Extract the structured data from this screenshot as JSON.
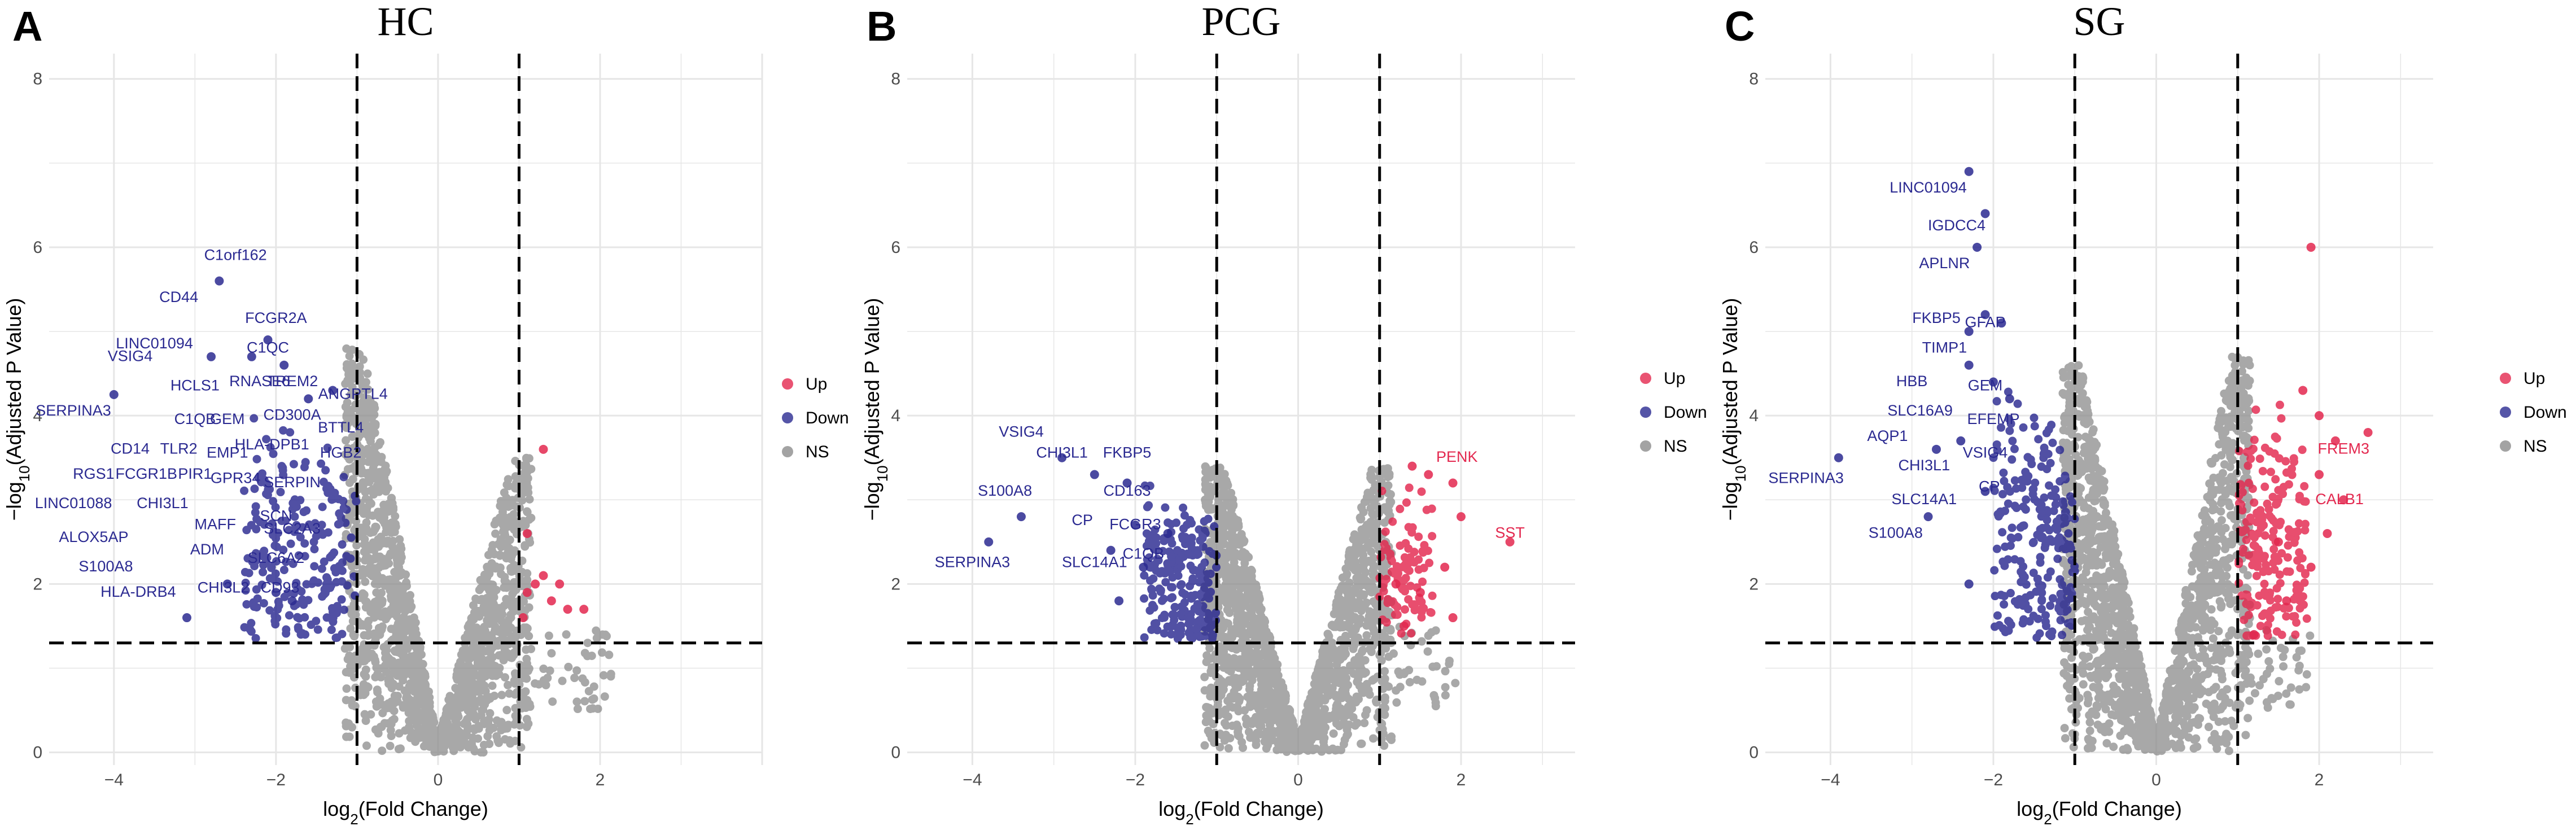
{
  "colors": {
    "up": "#e3284f",
    "down": "#2b2a91",
    "ns": "#8c8c8c",
    "grid": "#e6e6e6"
  },
  "chart_data": [
    {
      "type": "scatter",
      "letter": "A",
      "title": "HC",
      "xlabel_main": "log",
      "xlabel_sub": "2",
      "xlabel_rest": "(Fold Change)",
      "ylabel_main": "−log",
      "ylabel_sub": "10",
      "ylabel_rest": "(Adjusted P Value)",
      "xlim": [
        -4.8,
        4.0
      ],
      "ylim": [
        -0.15,
        8.3
      ],
      "x_ticks": [
        -4,
        -2,
        0,
        2
      ],
      "x_tick_labels": [
        "−4",
        "−2",
        "0",
        "2"
      ],
      "y_ticks": [
        0,
        2,
        4,
        6,
        8
      ],
      "y_tick_labels": [
        "0",
        "2",
        "4",
        "6",
        "8"
      ],
      "thresholds": {
        "fc": [
          -1,
          1
        ],
        "p": 1.3
      },
      "legend": [
        "Up",
        "Down",
        "NS"
      ],
      "cloud": {
        "left_peak": 4.8,
        "right_peak": 3.5,
        "right_extent": 2.2
      },
      "up_points": [
        [
          1.1,
          1.9
        ],
        [
          1.2,
          2.0
        ],
        [
          1.3,
          2.1
        ],
        [
          1.4,
          1.8
        ],
        [
          1.5,
          2.0
        ],
        [
          1.6,
          1.7
        ],
        [
          1.8,
          1.7
        ],
        [
          1.3,
          3.6
        ],
        [
          1.1,
          2.6
        ],
        [
          1.05,
          1.6
        ]
      ],
      "down_points": [
        [
          -4.0,
          4.25
        ],
        [
          -2.7,
          5.6
        ],
        [
          -2.8,
          4.7
        ],
        [
          -2.3,
          4.7
        ],
        [
          -2.1,
          4.9
        ],
        [
          -1.9,
          4.6
        ],
        [
          -1.6,
          4.2
        ],
        [
          -1.3,
          4.3
        ],
        [
          -3.1,
          1.6
        ],
        [
          -2.6,
          2.0
        ],
        [
          -2.0,
          1.9
        ],
        [
          -1.8,
          1.8
        ]
      ],
      "down_band": {
        "x_min": -2.4,
        "x_max": -1.0,
        "y_max": 4.2
      },
      "labels": [
        {
          "text": "C1orf162",
          "x": -2.5,
          "y": 5.85,
          "color": "down"
        },
        {
          "text": "CD44",
          "x": -3.2,
          "y": 5.35,
          "color": "down"
        },
        {
          "text": "FCGR2A",
          "x": -2.0,
          "y": 5.1,
          "color": "down"
        },
        {
          "text": "LINC01094",
          "x": -3.5,
          "y": 4.8,
          "color": "down"
        },
        {
          "text": "C1QC",
          "x": -2.1,
          "y": 4.75,
          "color": "down"
        },
        {
          "text": "VSIG4",
          "x": -3.8,
          "y": 4.65,
          "color": "down"
        },
        {
          "text": "HCLS1",
          "x": -3.0,
          "y": 4.3,
          "color": "down"
        },
        {
          "text": "RNASE6",
          "x": -2.2,
          "y": 4.35,
          "color": "down"
        },
        {
          "text": "TREM2",
          "x": -1.8,
          "y": 4.35,
          "color": "down"
        },
        {
          "text": "ANGPTL4",
          "x": -1.05,
          "y": 4.2,
          "color": "down"
        },
        {
          "text": "SERPINA3",
          "x": -4.5,
          "y": 4.0,
          "color": "down"
        },
        {
          "text": "C1QB",
          "x": -3.0,
          "y": 3.9,
          "color": "down"
        },
        {
          "text": "GEM",
          "x": -2.6,
          "y": 3.9,
          "color": "down"
        },
        {
          "text": "CD300A",
          "x": -1.8,
          "y": 3.95,
          "color": "down"
        },
        {
          "text": "BTTL4",
          "x": -1.2,
          "y": 3.8,
          "color": "down"
        },
        {
          "text": "CD14",
          "x": -3.8,
          "y": 3.55,
          "color": "down"
        },
        {
          "text": "TLR2",
          "x": -3.2,
          "y": 3.55,
          "color": "down"
        },
        {
          "text": "EMP1",
          "x": -2.6,
          "y": 3.5,
          "color": "down"
        },
        {
          "text": "HLA-DPB1",
          "x": -2.05,
          "y": 3.6,
          "color": "down"
        },
        {
          "text": "HGB2",
          "x": -1.2,
          "y": 3.5,
          "color": "down"
        },
        {
          "text": "RGS1",
          "x": -4.25,
          "y": 3.25,
          "color": "down"
        },
        {
          "text": "FCGR1B",
          "x": -3.6,
          "y": 3.25,
          "color": "down"
        },
        {
          "text": "PIR1",
          "x": -3.0,
          "y": 3.25,
          "color": "down"
        },
        {
          "text": "GPR34",
          "x": -2.5,
          "y": 3.2,
          "color": "down"
        },
        {
          "text": "SERPIN",
          "x": -1.8,
          "y": 3.15,
          "color": "down"
        },
        {
          "text": "LINC01088",
          "x": -4.5,
          "y": 2.9,
          "color": "down"
        },
        {
          "text": "CHI3L1",
          "x": -3.4,
          "y": 2.9,
          "color": "down"
        },
        {
          "text": "MAFF",
          "x": -2.75,
          "y": 2.65,
          "color": "down"
        },
        {
          "text": "SCN",
          "x": -2.0,
          "y": 2.75,
          "color": "down"
        },
        {
          "text": "SLC2A3",
          "x": -1.8,
          "y": 2.6,
          "color": "down"
        },
        {
          "text": "ALOX5AP",
          "x": -4.25,
          "y": 2.5,
          "color": "down"
        },
        {
          "text": "ADM",
          "x": -2.85,
          "y": 2.35,
          "color": "down"
        },
        {
          "text": "SLC6A2",
          "x": -2.0,
          "y": 2.25,
          "color": "down"
        },
        {
          "text": "S100A8",
          "x": -4.1,
          "y": 2.15,
          "color": "down"
        },
        {
          "text": "CHI3L2",
          "x": -2.65,
          "y": 1.9,
          "color": "down"
        },
        {
          "text": "CD93",
          "x": -1.95,
          "y": 1.9,
          "color": "down"
        },
        {
          "text": "HLA-DRB4",
          "x": -3.7,
          "y": 1.85,
          "color": "down"
        }
      ]
    },
    {
      "type": "scatter",
      "letter": "B",
      "title": "PCG",
      "xlabel_main": "log",
      "xlabel_sub": "2",
      "xlabel_rest": "(Fold Change)",
      "ylabel_main": "−log",
      "ylabel_sub": "10",
      "ylabel_rest": "(Adjusted P Value)",
      "xlim": [
        -4.8,
        3.4
      ],
      "ylim": [
        -0.15,
        8.3
      ],
      "x_ticks": [
        -4,
        -2,
        0,
        2
      ],
      "x_tick_labels": [
        "−4",
        "−2",
        "0",
        "2"
      ],
      "y_ticks": [
        0,
        2,
        4,
        6,
        8
      ],
      "y_tick_labels": [
        "0",
        "2",
        "4",
        "6",
        "8"
      ],
      "thresholds": {
        "fc": [
          -1,
          1
        ],
        "p": 1.3
      },
      "legend": [
        "Up",
        "Down",
        "NS"
      ],
      "cloud": {
        "left_peak": 3.4,
        "right_peak": 3.4,
        "right_extent": 2.0
      },
      "up_points": [
        [
          1.4,
          3.4
        ],
        [
          1.6,
          3.3
        ],
        [
          1.9,
          3.2
        ],
        [
          2.0,
          2.8
        ],
        [
          2.6,
          2.5
        ],
        [
          1.2,
          2.0
        ],
        [
          1.5,
          1.9
        ],
        [
          1.8,
          2.2
        ],
        [
          1.3,
          1.5
        ],
        [
          1.9,
          1.6
        ]
      ],
      "down_points": [
        [
          -2.9,
          3.5
        ],
        [
          -3.4,
          2.8
        ],
        [
          -3.8,
          2.5
        ],
        [
          -2.5,
          3.3
        ],
        [
          -2.1,
          3.2
        ],
        [
          -2.3,
          2.4
        ],
        [
          -1.9,
          2.2
        ],
        [
          -2.0,
          2.7
        ],
        [
          -1.6,
          2.6
        ],
        [
          -2.2,
          1.8
        ]
      ],
      "down_band": {
        "x_min": -1.9,
        "x_max": -1.0,
        "y_max": 3.3
      },
      "labels": [
        {
          "text": "VSIG4",
          "x": -3.4,
          "y": 3.75,
          "color": "down"
        },
        {
          "text": "CHI3L1",
          "x": -2.9,
          "y": 3.5,
          "color": "down"
        },
        {
          "text": "FKBP5",
          "x": -2.1,
          "y": 3.5,
          "color": "down"
        },
        {
          "text": "PENK",
          "x": 1.95,
          "y": 3.45,
          "color": "up"
        },
        {
          "text": "S100A8",
          "x": -3.6,
          "y": 3.05,
          "color": "down"
        },
        {
          "text": "CD163",
          "x": -2.1,
          "y": 3.05,
          "color": "down"
        },
        {
          "text": "CP",
          "x": -2.65,
          "y": 2.7,
          "color": "down"
        },
        {
          "text": "FCGR3",
          "x": -2.0,
          "y": 2.65,
          "color": "down"
        },
        {
          "text": "SST",
          "x": 2.6,
          "y": 2.55,
          "color": "up"
        },
        {
          "text": "C1QB",
          "x": -1.9,
          "y": 2.3,
          "color": "down"
        },
        {
          "text": "SLC14A1",
          "x": -2.5,
          "y": 2.2,
          "color": "down"
        },
        {
          "text": "SERPINA3",
          "x": -4.0,
          "y": 2.2,
          "color": "down"
        }
      ]
    },
    {
      "type": "scatter",
      "letter": "C",
      "title": "SG",
      "xlabel_main": "log",
      "xlabel_sub": "2",
      "xlabel_rest": "(Fold Change)",
      "ylabel_main": "−log",
      "ylabel_sub": "10",
      "ylabel_rest": "(Adjusted P Value)",
      "xlim": [
        -4.8,
        3.4
      ],
      "ylim": [
        -0.15,
        8.3
      ],
      "x_ticks": [
        -4,
        -2,
        0,
        2
      ],
      "x_tick_labels": [
        "−4",
        "−2",
        "0",
        "2"
      ],
      "y_ticks": [
        0,
        2,
        4,
        6,
        8
      ],
      "y_tick_labels": [
        "0",
        "2",
        "4",
        "6",
        "8"
      ],
      "thresholds": {
        "fc": [
          -1,
          1
        ],
        "p": 1.3
      },
      "legend": [
        "Up",
        "Down",
        "NS"
      ],
      "cloud": {
        "left_peak": 4.6,
        "right_peak": 4.7,
        "right_extent": 1.9
      },
      "up_points": [
        [
          1.9,
          6.0
        ],
        [
          1.8,
          4.3
        ],
        [
          2.0,
          4.0
        ],
        [
          2.2,
          3.7
        ],
        [
          2.6,
          3.8
        ],
        [
          2.0,
          3.3
        ],
        [
          2.3,
          3.0
        ],
        [
          1.5,
          2.5
        ],
        [
          1.9,
          2.2
        ],
        [
          1.2,
          1.4
        ],
        [
          1.6,
          1.8
        ],
        [
          2.1,
          2.6
        ]
      ],
      "down_points": [
        [
          -2.3,
          6.9
        ],
        [
          -2.1,
          6.4
        ],
        [
          -2.2,
          6.0
        ],
        [
          -2.1,
          5.2
        ],
        [
          -1.9,
          5.1
        ],
        [
          -2.3,
          5.0
        ],
        [
          -2.3,
          4.6
        ],
        [
          -2.0,
          4.4
        ],
        [
          -1.8,
          4.2
        ],
        [
          -2.4,
          3.7
        ],
        [
          -2.7,
          3.6
        ],
        [
          -2.1,
          3.1
        ],
        [
          -3.9,
          3.5
        ],
        [
          -2.8,
          2.8
        ],
        [
          -2.3,
          2.0
        ]
      ],
      "down_band": {
        "x_min": -2.0,
        "x_max": -1.0,
        "y_max": 4.6
      },
      "labels": [
        {
          "text": "LINC01094",
          "x": -2.8,
          "y": 6.65,
          "color": "down"
        },
        {
          "text": "IGDCC4",
          "x": -2.45,
          "y": 6.2,
          "color": "down"
        },
        {
          "text": "APLNR",
          "x": -2.6,
          "y": 5.75,
          "color": "down"
        },
        {
          "text": "FKBP5",
          "x": -2.7,
          "y": 5.1,
          "color": "down"
        },
        {
          "text": "GFAP",
          "x": -2.1,
          "y": 5.05,
          "color": "down"
        },
        {
          "text": "TIMP1",
          "x": -2.6,
          "y": 4.75,
          "color": "down"
        },
        {
          "text": "HBB",
          "x": -3.0,
          "y": 4.35,
          "color": "down"
        },
        {
          "text": "GEM",
          "x": -2.1,
          "y": 4.3,
          "color": "down"
        },
        {
          "text": "SLC16A9",
          "x": -2.9,
          "y": 4.0,
          "color": "down"
        },
        {
          "text": "EFEMP",
          "x": -2.0,
          "y": 3.9,
          "color": "down"
        },
        {
          "text": "AQP1",
          "x": -3.3,
          "y": 3.7,
          "color": "down"
        },
        {
          "text": "VSIG4",
          "x": -2.1,
          "y": 3.5,
          "color": "down"
        },
        {
          "text": "CHI3L1",
          "x": -2.85,
          "y": 3.35,
          "color": "down"
        },
        {
          "text": "FREM3",
          "x": 2.3,
          "y": 3.55,
          "color": "up"
        },
        {
          "text": "SERPINA3",
          "x": -4.3,
          "y": 3.2,
          "color": "down"
        },
        {
          "text": "CP",
          "x": -2.05,
          "y": 3.1,
          "color": "down"
        },
        {
          "text": "CALB1",
          "x": 2.25,
          "y": 2.95,
          "color": "up"
        },
        {
          "text": "SLC14A1",
          "x": -2.85,
          "y": 2.95,
          "color": "down"
        },
        {
          "text": "S100A8",
          "x": -3.2,
          "y": 2.55,
          "color": "down"
        }
      ]
    }
  ]
}
